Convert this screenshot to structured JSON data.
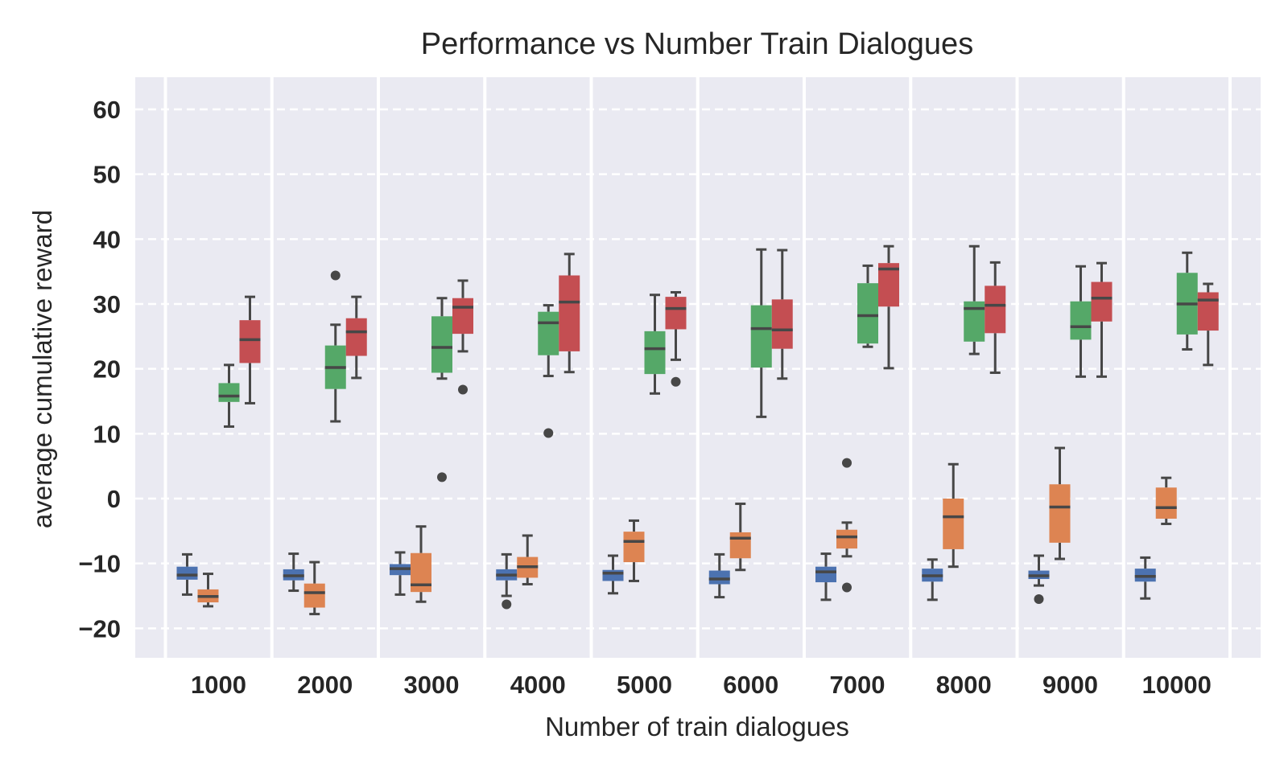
{
  "chart_data": {
    "type": "box",
    "title": "Performance vs Number Train Dialogues",
    "xlabel": "Number of train dialogues",
    "ylabel": "average cumulative reward",
    "categories": [
      "1000",
      "2000",
      "3000",
      "4000",
      "5000",
      "6000",
      "7000",
      "8000",
      "9000",
      "10000"
    ],
    "ylim": [
      -25,
      65
    ],
    "yticks": [
      -20,
      -10,
      0,
      10,
      20,
      30,
      40,
      50,
      60
    ],
    "grid": true,
    "colors": [
      "#4c72b0",
      "#dd8452",
      "#55a868",
      "#c44e52"
    ],
    "series": [
      {
        "color": "#4c72b0",
        "boxes": [
          {
            "whislo": -14.8,
            "q1": -12.5,
            "med": -11.8,
            "q3": -10.5,
            "whishi": -8.6,
            "fliers": []
          },
          {
            "whislo": -14.2,
            "q1": -12.6,
            "med": -11.9,
            "q3": -10.9,
            "whishi": -8.5,
            "fliers": []
          },
          {
            "whislo": -14.8,
            "q1": -11.8,
            "med": -10.8,
            "q3": -10.1,
            "whishi": -8.3,
            "fliers": []
          },
          {
            "whislo": -15.0,
            "q1": -12.6,
            "med": -11.8,
            "q3": -10.9,
            "whishi": -8.6,
            "fliers": [
              -16.3
            ]
          },
          {
            "whislo": -14.6,
            "q1": -12.7,
            "med": -11.5,
            "q3": -11.0,
            "whishi": -8.8,
            "fliers": []
          },
          {
            "whislo": -15.2,
            "q1": -13.2,
            "med": -12.4,
            "q3": -11.1,
            "whishi": -8.6,
            "fliers": []
          },
          {
            "whislo": -15.6,
            "q1": -12.9,
            "med": -11.3,
            "q3": -10.5,
            "whishi": -8.5,
            "fliers": []
          },
          {
            "whislo": -15.6,
            "q1": -12.8,
            "med": -11.9,
            "q3": -10.8,
            "whishi": -9.4,
            "fliers": []
          },
          {
            "whislo": -13.4,
            "q1": -12.4,
            "med": -11.9,
            "q3": -11.1,
            "whishi": -8.8,
            "fliers": [
              -15.5
            ]
          },
          {
            "whislo": -15.4,
            "q1": -12.8,
            "med": -12.0,
            "q3": -10.8,
            "whishi": -9.1,
            "fliers": []
          }
        ]
      },
      {
        "color": "#dd8452",
        "boxes": [
          {
            "whislo": -16.6,
            "q1": -16.0,
            "med": -15.1,
            "q3": -14.0,
            "whishi": -11.6,
            "fliers": []
          },
          {
            "whislo": -17.8,
            "q1": -16.8,
            "med": -14.5,
            "q3": -13.1,
            "whishi": -9.8,
            "fliers": []
          },
          {
            "whislo": -15.9,
            "q1": -14.4,
            "med": -13.3,
            "q3": -8.4,
            "whishi": -4.3,
            "fliers": []
          },
          {
            "whislo": -13.2,
            "q1": -12.2,
            "med": -10.5,
            "q3": -9.0,
            "whishi": -5.7,
            "fliers": []
          },
          {
            "whislo": -12.7,
            "q1": -9.8,
            "med": -6.6,
            "q3": -5.1,
            "whishi": -3.4,
            "fliers": []
          },
          {
            "whislo": -11.0,
            "q1": -9.2,
            "med": -6.1,
            "q3": -5.2,
            "whishi": -0.8,
            "fliers": []
          },
          {
            "whislo": -8.9,
            "q1": -7.7,
            "med": -5.9,
            "q3": -4.8,
            "whishi": -3.7,
            "fliers": [
              5.5,
              -13.7
            ]
          },
          {
            "whislo": -10.5,
            "q1": -7.8,
            "med": -2.8,
            "q3": 0.0,
            "whishi": 5.3,
            "fliers": []
          },
          {
            "whislo": -9.3,
            "q1": -6.8,
            "med": -1.3,
            "q3": 2.2,
            "whishi": 7.8,
            "fliers": []
          },
          {
            "whislo": -3.9,
            "q1": -3.1,
            "med": -1.4,
            "q3": 1.7,
            "whishi": 3.2,
            "fliers": []
          }
        ]
      },
      {
        "color": "#55a868",
        "boxes": [
          {
            "whislo": 11.1,
            "q1": 14.9,
            "med": 15.8,
            "q3": 17.8,
            "whishi": 20.6,
            "fliers": []
          },
          {
            "whislo": 11.9,
            "q1": 16.9,
            "med": 20.2,
            "q3": 23.6,
            "whishi": 26.8,
            "fliers": [
              34.4
            ]
          },
          {
            "whislo": 18.5,
            "q1": 19.4,
            "med": 23.3,
            "q3": 28.1,
            "whishi": 30.9,
            "fliers": [
              3.3
            ]
          },
          {
            "whislo": 18.9,
            "q1": 22.1,
            "med": 27.1,
            "q3": 28.8,
            "whishi": 29.8,
            "fliers": [
              10.1
            ]
          },
          {
            "whislo": 16.2,
            "q1": 19.2,
            "med": 23.1,
            "q3": 25.8,
            "whishi": 31.4,
            "fliers": []
          },
          {
            "whislo": 12.6,
            "q1": 20.2,
            "med": 26.2,
            "q3": 29.8,
            "whishi": 38.4,
            "fliers": []
          },
          {
            "whislo": 23.4,
            "q1": 23.9,
            "med": 28.2,
            "q3": 33.2,
            "whishi": 35.9,
            "fliers": []
          },
          {
            "whislo": 22.3,
            "q1": 24.2,
            "med": 29.3,
            "q3": 30.4,
            "whishi": 38.9,
            "fliers": []
          },
          {
            "whislo": 18.8,
            "q1": 24.5,
            "med": 26.5,
            "q3": 30.4,
            "whishi": 35.8,
            "fliers": []
          },
          {
            "whislo": 23.0,
            "q1": 25.3,
            "med": 30.0,
            "q3": 34.8,
            "whishi": 37.9,
            "fliers": []
          }
        ]
      },
      {
        "color": "#c44e52",
        "boxes": [
          {
            "whislo": 14.7,
            "q1": 20.9,
            "med": 24.5,
            "q3": 27.5,
            "whishi": 31.1,
            "fliers": []
          },
          {
            "whislo": 18.6,
            "q1": 22.0,
            "med": 25.7,
            "q3": 27.8,
            "whishi": 31.1,
            "fliers": []
          },
          {
            "whislo": 22.7,
            "q1": 25.4,
            "med": 29.5,
            "q3": 30.9,
            "whishi": 33.6,
            "fliers": [
              16.8
            ]
          },
          {
            "whislo": 19.5,
            "q1": 22.7,
            "med": 30.3,
            "q3": 34.4,
            "whishi": 37.7,
            "fliers": []
          },
          {
            "whislo": 21.4,
            "q1": 26.1,
            "med": 29.3,
            "q3": 31.1,
            "whishi": 31.8,
            "fliers": [
              18.0
            ]
          },
          {
            "whislo": 18.5,
            "q1": 23.1,
            "med": 26.0,
            "q3": 30.7,
            "whishi": 38.3,
            "fliers": []
          },
          {
            "whislo": 20.1,
            "q1": 29.6,
            "med": 35.4,
            "q3": 36.3,
            "whishi": 38.9,
            "fliers": []
          },
          {
            "whislo": 19.4,
            "q1": 25.5,
            "med": 29.8,
            "q3": 32.8,
            "whishi": 36.4,
            "fliers": []
          },
          {
            "whislo": 18.8,
            "q1": 27.3,
            "med": 30.9,
            "q3": 33.4,
            "whishi": 36.3,
            "fliers": []
          },
          {
            "whislo": 20.6,
            "q1": 25.9,
            "med": 30.6,
            "q3": 31.8,
            "whishi": 33.1,
            "fliers": []
          }
        ]
      }
    ]
  }
}
